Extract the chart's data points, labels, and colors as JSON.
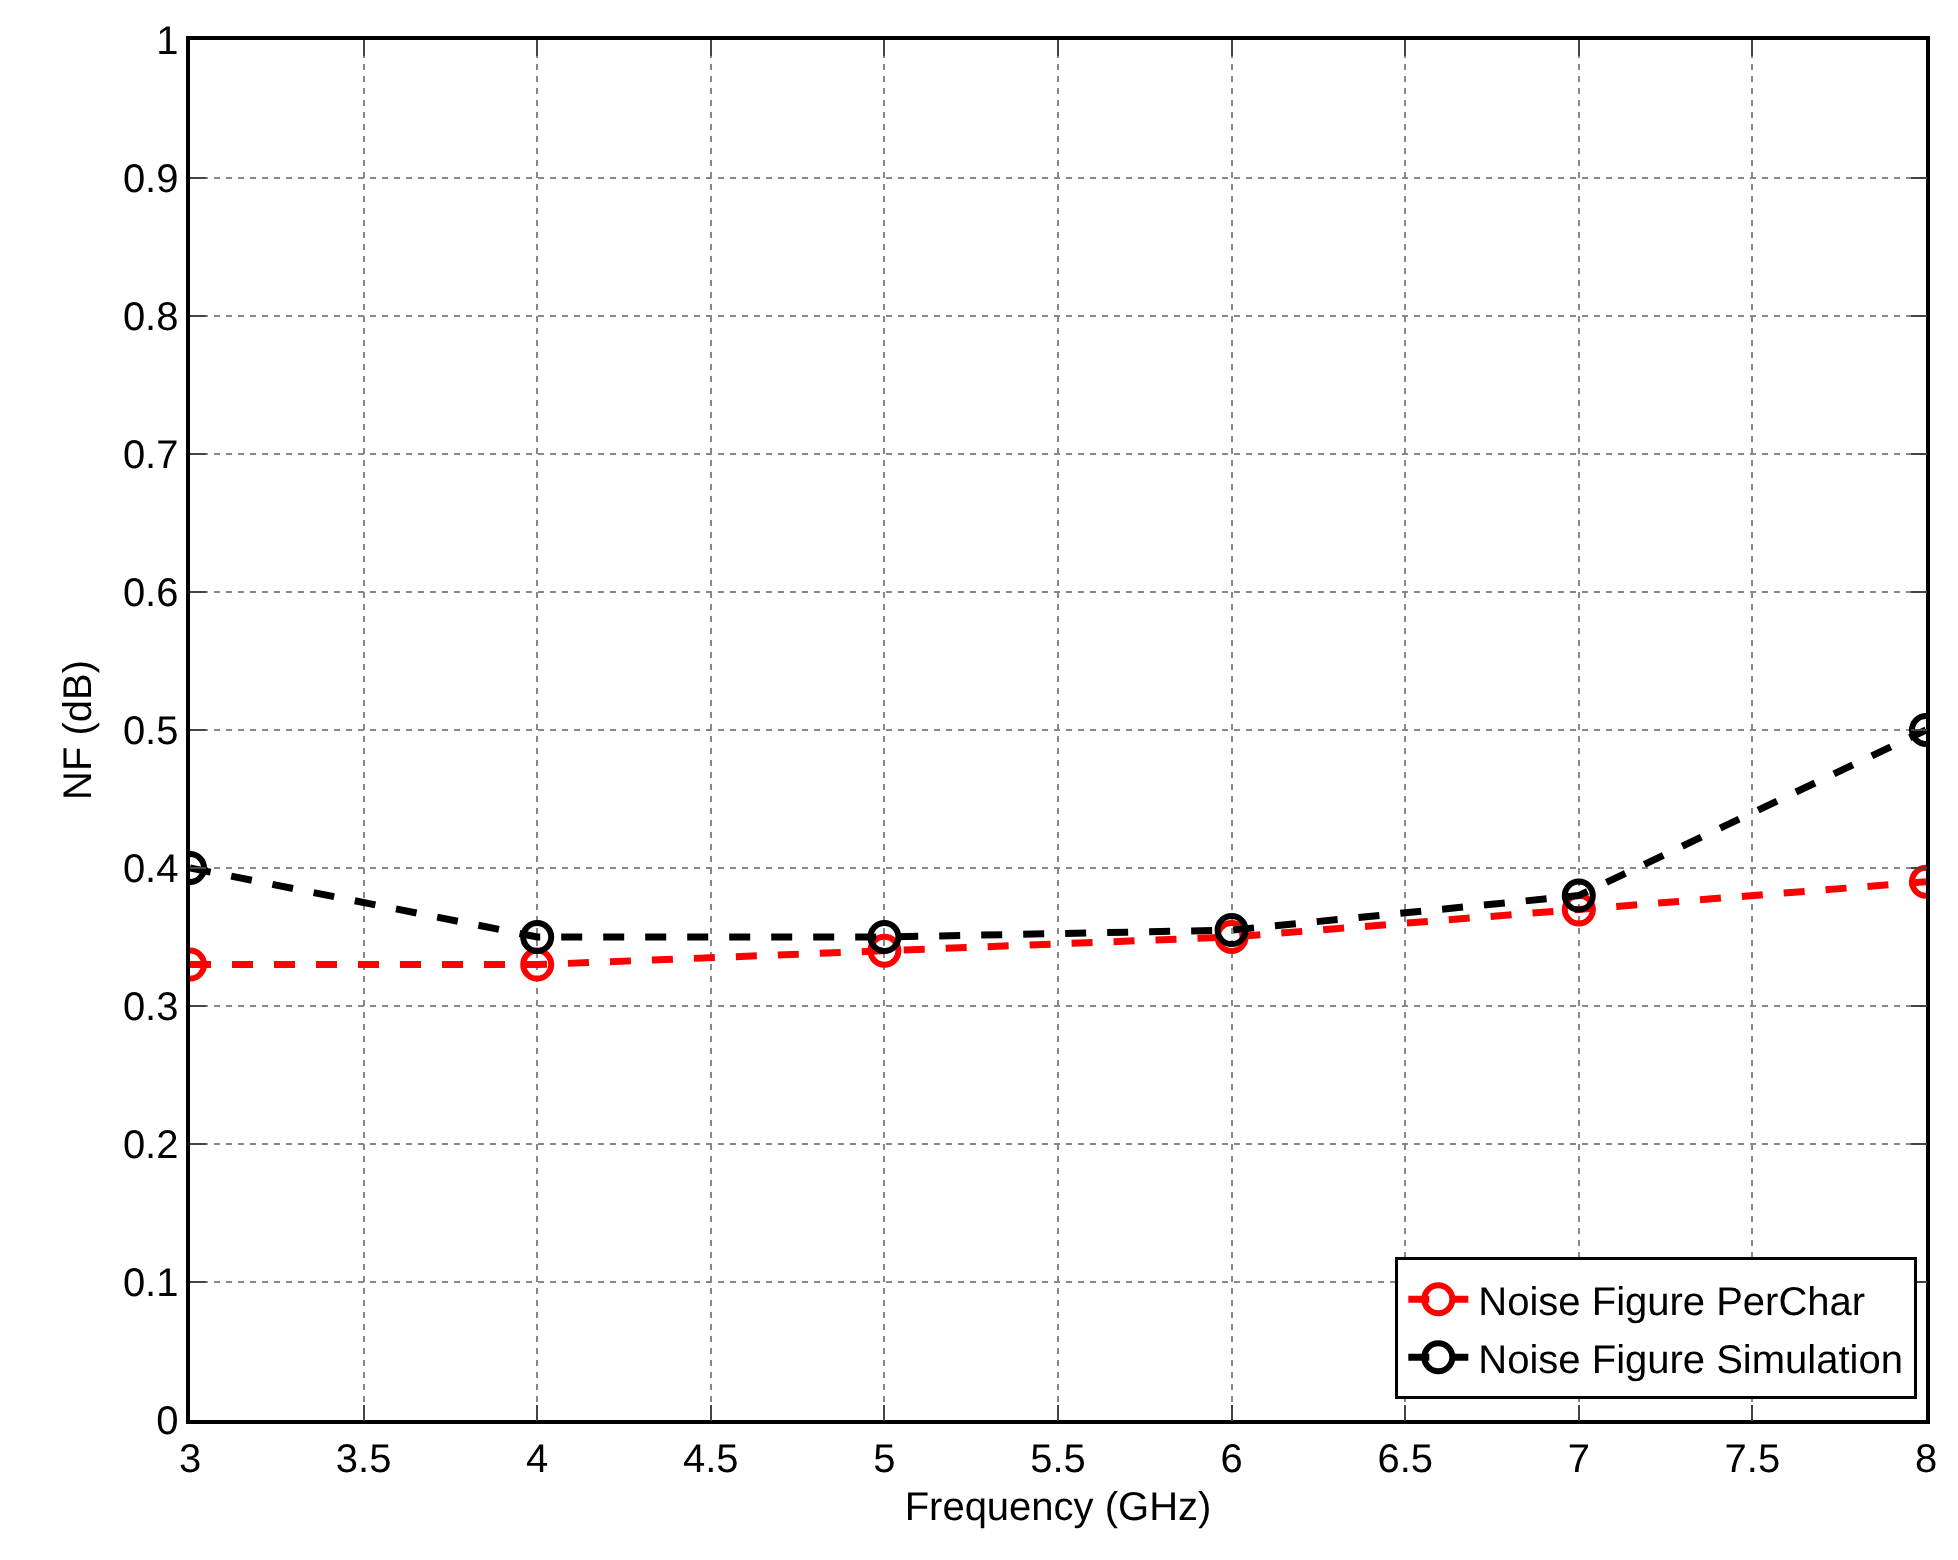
{
  "chart_data": {
    "type": "line",
    "xlabel": "Frequency (GHz)",
    "ylabel": "NF (dB)",
    "x": [
      3,
      4,
      5,
      6,
      7,
      8
    ],
    "series": [
      {
        "name": "Noise Figure PerChar",
        "color": "#ff0000",
        "values": [
          0.33,
          0.33,
          0.34,
          0.35,
          0.37,
          0.39
        ]
      },
      {
        "name": "Noise Figure Simulation",
        "color": "#000000",
        "values": [
          0.4,
          0.35,
          0.35,
          0.355,
          0.38,
          0.5
        ]
      }
    ],
    "xlim": [
      3,
      8
    ],
    "xticks": [
      3,
      3.5,
      4,
      4.5,
      5,
      5.5,
      6,
      6.5,
      7,
      7.5,
      8
    ],
    "ylim": [
      0,
      1
    ],
    "yticks": [
      0,
      0.1,
      0.2,
      0.3,
      0.4,
      0.5,
      0.6,
      0.7,
      0.8,
      0.9,
      1
    ],
    "grid": true,
    "legend": "bottom right",
    "marker": "circle",
    "line_style": "dashed"
  }
}
